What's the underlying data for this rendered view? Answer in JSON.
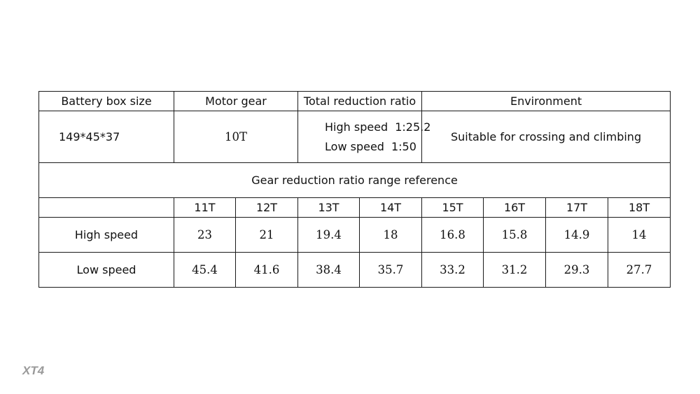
{
  "header": {
    "battery_box_size": "Battery box size",
    "motor_gear": "Motor gear",
    "total_reduction_ratio": "Total reduction ratio",
    "environment": "Environment"
  },
  "specs": {
    "battery_box_size": "149*45*37",
    "motor_gear": "10T",
    "high_speed_label": "High speed",
    "high_speed_ratio": "1:25.2",
    "low_speed_label": "Low speed",
    "low_speed_ratio": "1:50",
    "environment": "Suitable for crossing and climbing"
  },
  "reference_title": "Gear reduction ratio range reference",
  "gear_table": {
    "gears": [
      "11T",
      "12T",
      "13T",
      "14T",
      "15T",
      "16T",
      "17T",
      "18T"
    ],
    "rows": [
      {
        "label": "High speed",
        "values": [
          "23",
          "21",
          "19.4",
          "18",
          "16.8",
          "15.8",
          "14.9",
          "14"
        ]
      },
      {
        "label": "Low speed",
        "values": [
          "45.4",
          "41.6",
          "38.4",
          "35.7",
          "33.2",
          "31.2",
          "29.3",
          "27.7"
        ]
      }
    ]
  },
  "watermark": "XT4"
}
